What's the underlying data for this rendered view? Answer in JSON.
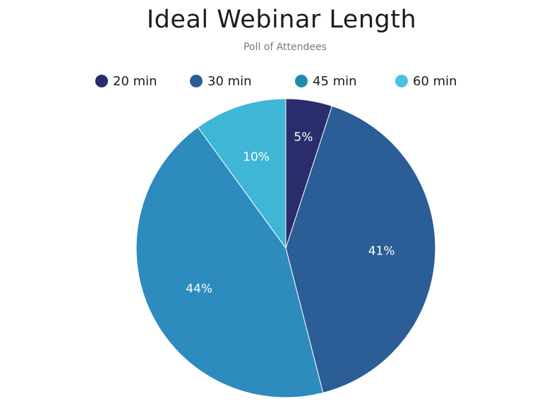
{
  "chart_data": {
    "type": "pie",
    "title": "Ideal Webinar Length",
    "subtitle": "Poll of Attendees",
    "legend_position": "top",
    "slices": [
      {
        "label": "20 min",
        "value": 5,
        "display": "5%",
        "color": "#2a2d6b"
      },
      {
        "label": "30 min",
        "value": 41,
        "display": "41%",
        "color": "#2b5d96"
      },
      {
        "label": "45 min",
        "value": 44,
        "display": "44%",
        "color": "#2d8bbd"
      },
      {
        "label": "60 min",
        "value": 10,
        "display": "10%",
        "color": "#3fb6d6"
      }
    ]
  },
  "legend_colors": [
    "#2a2d6b",
    "#2b5d96",
    "#1f8db0",
    "#47c3e2"
  ]
}
